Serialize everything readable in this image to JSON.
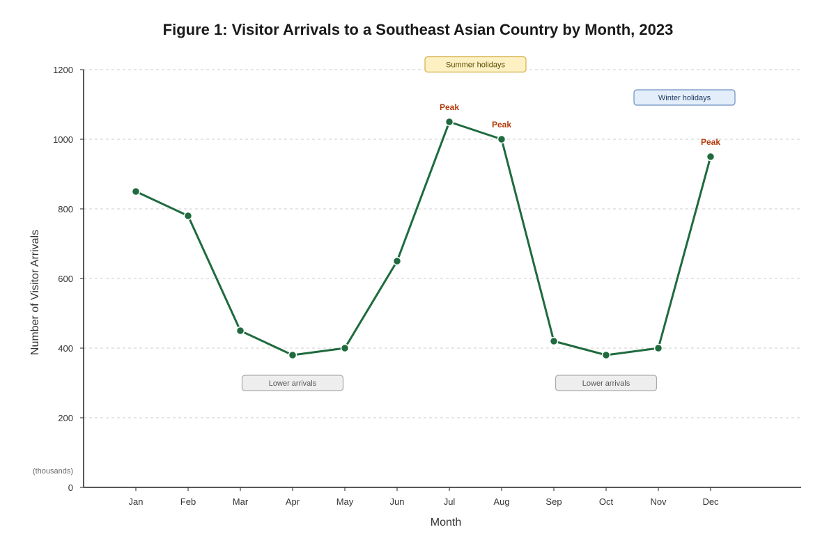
{
  "chart_data": {
    "type": "line",
    "title": "Figure 1: Visitor Arrivals to a Southeast Asian Country by Month, 2023",
    "xlabel": "Month",
    "ylabel": "Number of Visitor Arrivals",
    "yunits": "(thousands)",
    "categories": [
      "Jan",
      "Feb",
      "Mar",
      "Apr",
      "May",
      "Jun",
      "Jul",
      "Aug",
      "Sep",
      "Oct",
      "Nov",
      "Dec"
    ],
    "series": [
      {
        "values": [
          850,
          780,
          450,
          380,
          400,
          650,
          1050,
          1000,
          420,
          380,
          400,
          950
        ]
      }
    ],
    "ylim": [
      0,
      1200
    ],
    "yticks": [
      0,
      200,
      400,
      600,
      800,
      1000,
      1200
    ],
    "grid": true,
    "annotations": {
      "peaks": [
        {
          "category": "Jul",
          "label": "Peak"
        },
        {
          "category": "Aug",
          "label": "Peak"
        },
        {
          "category": "Dec",
          "label": "Peak"
        }
      ],
      "periods": [
        {
          "label": "Summer holidays",
          "center_month": "Jul",
          "center_offset": 0.5,
          "y": 1215,
          "style": "summer"
        },
        {
          "label": "Winter holidays",
          "center_month": "Nov",
          "center_offset": 0.5,
          "y": 1120,
          "style": "winter"
        },
        {
          "label": "Lower arrivals",
          "center_month": "Mar",
          "center_offset": 1.0,
          "y": 300,
          "style": "lower"
        },
        {
          "label": "Lower arrivals",
          "center_month": "Sep",
          "center_offset": 1.0,
          "y": 300,
          "style": "lower"
        }
      ]
    },
    "colors": {
      "line": "#1f6b3f",
      "marker": "#1f6b3f",
      "peak_text": "#b33a0a",
      "summer_fill": "#fdf1c4",
      "summer_stroke": "#d4b043",
      "summer_text": "#5a4a00",
      "winter_fill": "#e4eefa",
      "winter_stroke": "#6a8fc2",
      "winter_text": "#1e3b63",
      "lower_fill": "#eeeeee",
      "lower_stroke": "#aaaaaa",
      "lower_text": "#555555"
    }
  }
}
